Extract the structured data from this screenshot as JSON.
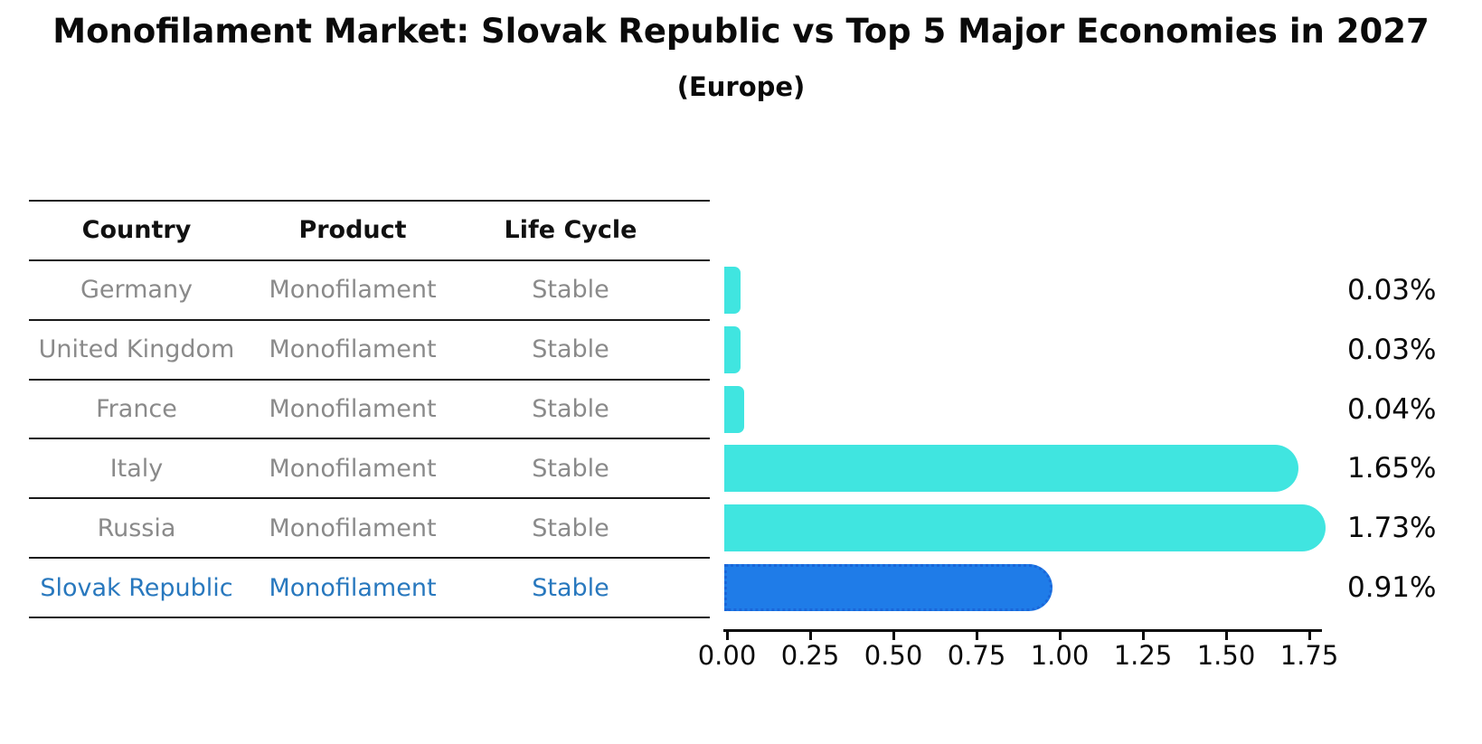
{
  "title": "Monofilament Market: Slovak Republic vs Top 5 Major Economies in 2027",
  "subtitle": "(Europe)",
  "table": {
    "headers": [
      "Country",
      "Product",
      "Life Cycle"
    ],
    "rows": [
      {
        "country": "Germany",
        "product": "Monofilament",
        "life_cycle": "Stable",
        "highlight": false
      },
      {
        "country": "United Kingdom",
        "product": "Monofilament",
        "life_cycle": "Stable",
        "highlight": false
      },
      {
        "country": "France",
        "product": "Monofilament",
        "life_cycle": "Stable",
        "highlight": false
      },
      {
        "country": "Italy",
        "product": "Monofilament",
        "life_cycle": "Stable",
        "highlight": false
      },
      {
        "country": "Russia",
        "product": "Monofilament",
        "life_cycle": "Stable",
        "highlight": false
      },
      {
        "country": "Slovak Republic",
        "product": "Monofilament",
        "life_cycle": "Stable",
        "highlight": true
      }
    ]
  },
  "chart_data": {
    "type": "bar",
    "orientation": "horizontal",
    "title": "Monofilament Market: Slovak Republic vs Top 5 Major Economies in 2027",
    "subtitle": "(Europe)",
    "categories": [
      "Germany",
      "United Kingdom",
      "France",
      "Italy",
      "Russia",
      "Slovak Republic"
    ],
    "values": [
      0.03,
      0.03,
      0.04,
      1.65,
      1.73,
      0.91
    ],
    "value_labels": [
      "0.03%",
      "0.03%",
      "0.04%",
      "1.65%",
      "1.73%",
      "0.91%"
    ],
    "x_ticks": [
      "0.00",
      "0.25",
      "0.50",
      "0.75",
      "1.00",
      "1.25",
      "1.50",
      "1.75"
    ],
    "xlim": [
      0,
      1.75
    ],
    "grid": false,
    "legend": null,
    "bar_color": "#40E5E0",
    "highlight_color": "#1F7CE8",
    "highlight_edge_color": "#1A66D9",
    "highlight_index": 5
  },
  "colors": {
    "highlight_text": "#2878BE",
    "table_text": "#8a8a8a",
    "header_text": "#111111",
    "line": "#1a1a1a"
  }
}
